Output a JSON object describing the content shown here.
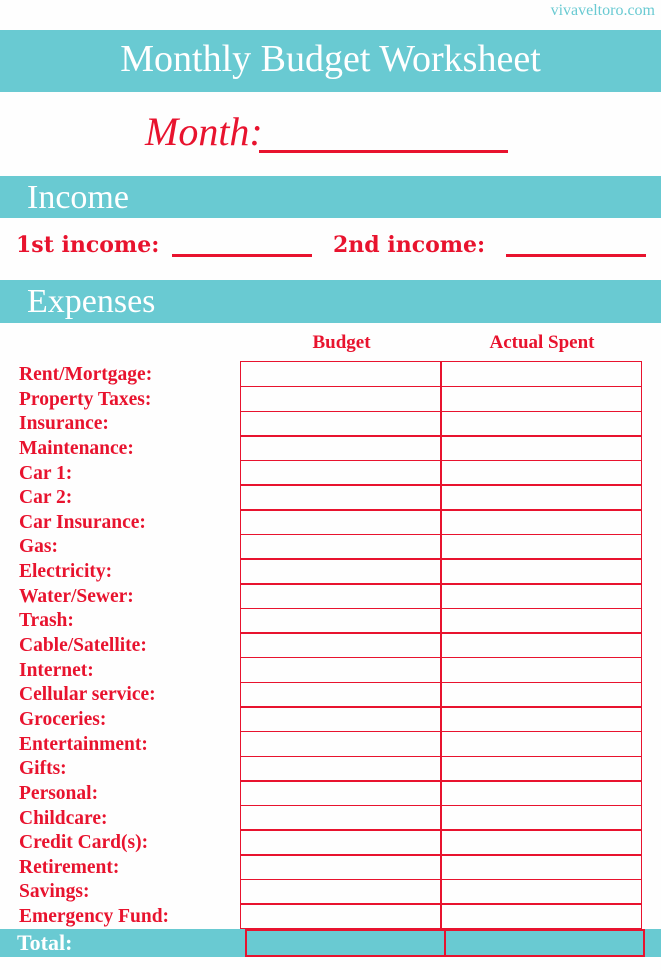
{
  "site": "vivaveltoro.com",
  "title": "Monthly Budget Worksheet",
  "month_label": "Month:",
  "income": {
    "heading": "Income",
    "first": "1st income:",
    "second": "2nd income:"
  },
  "expenses": {
    "heading": "Expenses",
    "columns": [
      "Budget",
      "Actual Spent"
    ],
    "items": [
      "Rent/Mortgage:",
      "Property Taxes:",
      "Insurance:",
      "Maintenance:",
      "Car 1:",
      "Car 2:",
      "Car Insurance:",
      "Gas:",
      "Electricity:",
      "Water/Sewer:",
      "Trash:",
      "Cable/Satellite:",
      "Internet:",
      "Cellular service:",
      "Groceries:",
      "Entertainment:",
      "Gifts:",
      "Personal:",
      "Childcare:",
      "Credit Card(s):",
      "Retirement:",
      "Savings:",
      "Emergency Fund:"
    ],
    "total_label": "Total:"
  },
  "colors": {
    "teal": "#69cad2",
    "red": "#e8132e"
  }
}
